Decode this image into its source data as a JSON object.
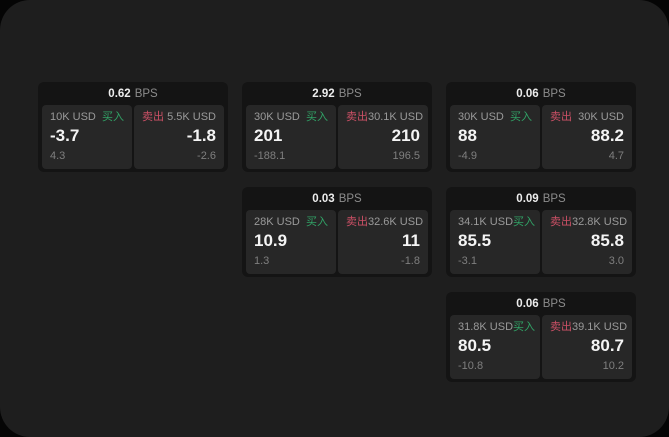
{
  "labels": {
    "buy": "买入",
    "sell": "卖出",
    "bps": "BPS"
  },
  "colors": {
    "buy": "#31a266",
    "sell": "#cc5066",
    "background": "#1e1e1e",
    "card": "#141414",
    "panel": "#272727"
  },
  "cards": [
    {
      "bps": "0.62",
      "buy": {
        "amount": "10K USD",
        "value": "-3.7",
        "sub": "4.3"
      },
      "sell": {
        "amount": "5.5K USD",
        "value": "-1.8",
        "sub": "-2.6"
      }
    },
    {
      "bps": "2.92",
      "buy": {
        "amount": "30K USD",
        "value": "201",
        "sub": "-188.1"
      },
      "sell": {
        "amount": "30.1K USD",
        "value": "210",
        "sub": "196.5"
      }
    },
    {
      "bps": "0.06",
      "buy": {
        "amount": "30K USD",
        "value": "88",
        "sub": "-4.9"
      },
      "sell": {
        "amount": "30K USD",
        "value": "88.2",
        "sub": "4.7"
      }
    },
    {
      "bps": "0.03",
      "buy": {
        "amount": "28K USD",
        "value": "10.9",
        "sub": "1.3"
      },
      "sell": {
        "amount": "32.6K USD",
        "value": "11",
        "sub": "-1.8"
      }
    },
    {
      "bps": "0.09",
      "buy": {
        "amount": "34.1K USD",
        "value": "85.5",
        "sub": "-3.1"
      },
      "sell": {
        "amount": "32.8K USD",
        "value": "85.8",
        "sub": "3.0"
      }
    },
    {
      "bps": "0.06",
      "buy": {
        "amount": "31.8K USD",
        "value": "80.5",
        "sub": "-10.8"
      },
      "sell": {
        "amount": "39.1K USD",
        "value": "80.7",
        "sub": "10.2"
      }
    }
  ]
}
